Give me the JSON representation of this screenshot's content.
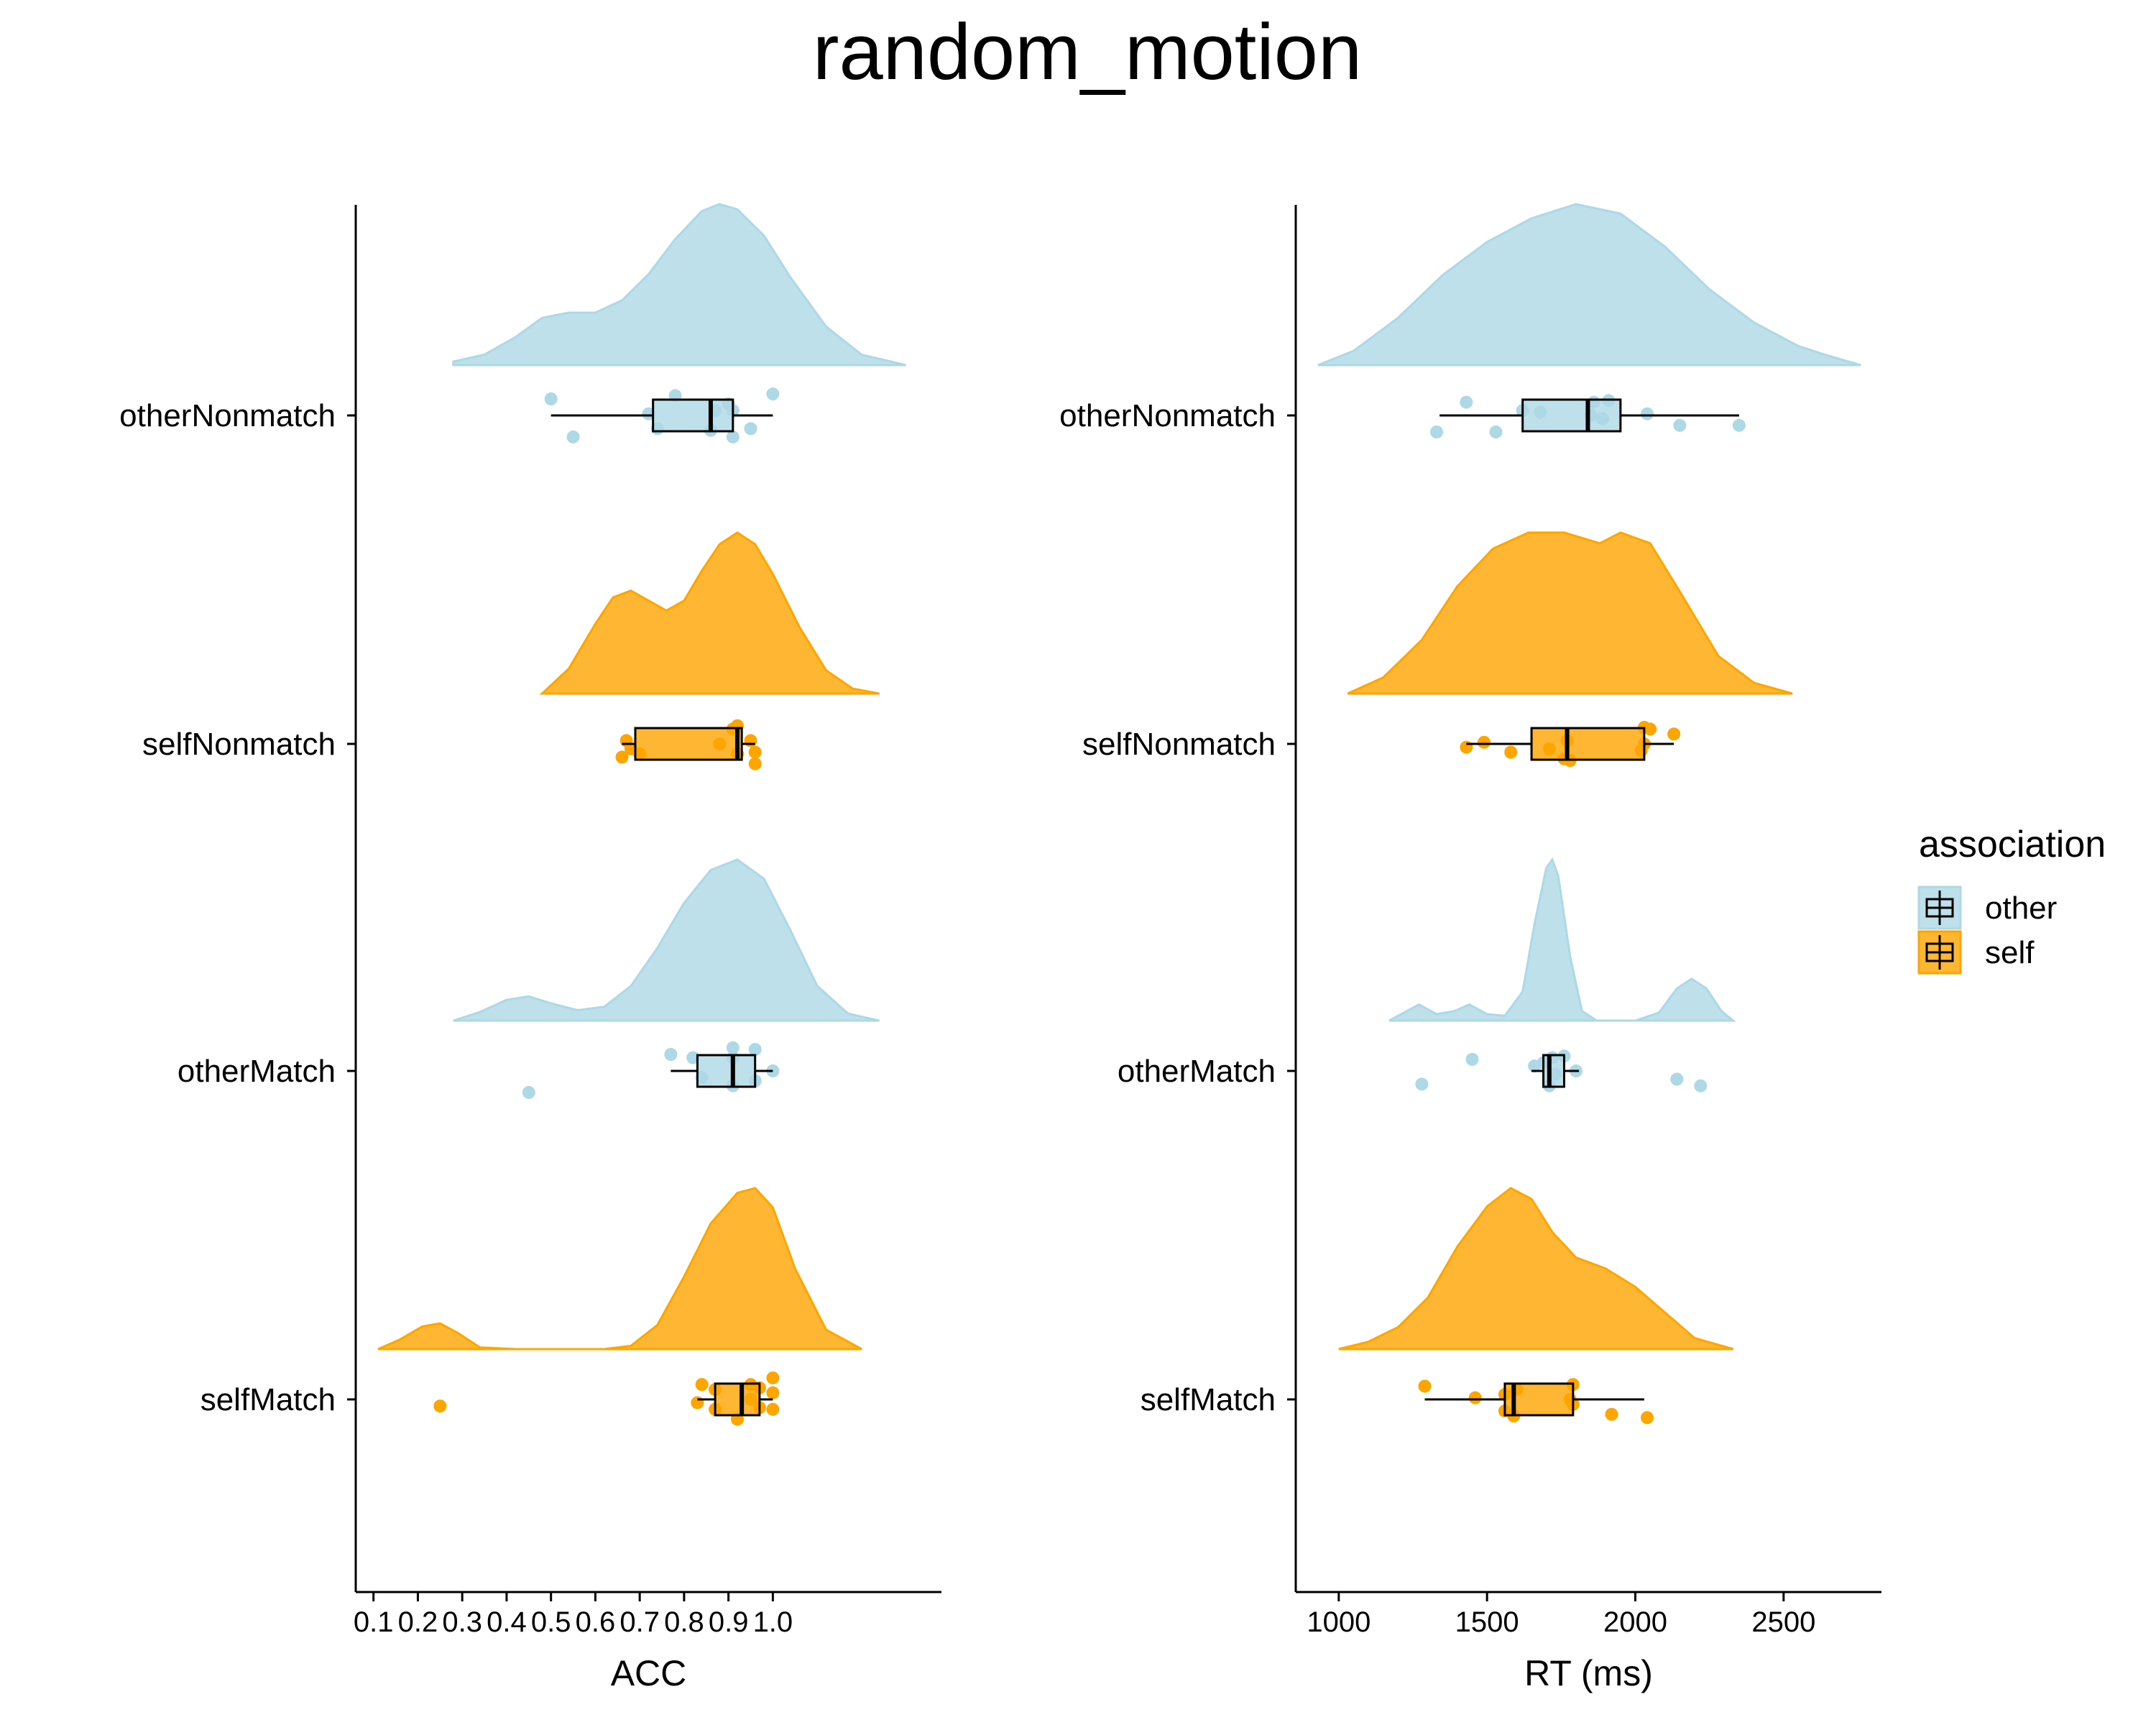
{
  "title": "random_motion",
  "colors": {
    "other": "#ADD8E6",
    "self": "#FFA500",
    "line": "#000000"
  },
  "legend": {
    "title": "association",
    "items": [
      {
        "key": "other",
        "label": "other"
      },
      {
        "key": "self",
        "label": "self"
      }
    ]
  },
  "chart_data": [
    {
      "type": "raincloud",
      "xlabel": "ACC",
      "xlim": [
        0.06,
        1.38
      ],
      "xticks": [
        0.1,
        0.2,
        0.3,
        0.4,
        0.5,
        0.6,
        0.7,
        0.8,
        0.9,
        1.0
      ],
      "xtick_labels": [
        "0.1",
        "0.2",
        "0.3",
        "0.4",
        "0.5",
        "0.6",
        "0.7",
        "0.8",
        "0.9",
        "1.0"
      ],
      "categories": [
        "otherNonmatch",
        "selfNonmatch",
        "otherMatch",
        "selfMatch"
      ],
      "groups": [
        {
          "category": "otherNonmatch",
          "association": "other",
          "box": {
            "whisker_low": 0.5,
            "q1": 0.73,
            "median": 0.86,
            "q3": 0.91,
            "whisker_high": 1.0
          },
          "points": [
            [
              0.5,
              0.1
            ],
            [
              0.78,
              0.12
            ],
            [
              0.9,
              0.07
            ],
            [
              1.0,
              0.13
            ],
            [
              0.72,
              0.01
            ],
            [
              0.87,
              0.03
            ],
            [
              0.91,
              0.03
            ],
            [
              0.74,
              -0.08
            ],
            [
              0.86,
              -0.09
            ],
            [
              0.95,
              -0.08
            ],
            [
              0.91,
              -0.13
            ],
            [
              0.55,
              -0.13
            ]
          ],
          "density": {
            "range": [
              0.28,
              1.3
            ],
            "x": [
              0.28,
              0.35,
              0.42,
              0.48,
              0.54,
              0.6,
              0.66,
              0.72,
              0.78,
              0.84,
              0.88,
              0.92,
              0.98,
              1.04,
              1.12,
              1.2,
              1.3
            ],
            "y": [
              0.02,
              0.06,
              0.16,
              0.27,
              0.3,
              0.3,
              0.37,
              0.52,
              0.72,
              0.88,
              0.92,
              0.89,
              0.74,
              0.5,
              0.22,
              0.06,
              0.0
            ]
          }
        },
        {
          "category": "selfNonmatch",
          "association": "self",
          "box": {
            "whisker_low": 0.66,
            "q1": 0.69,
            "median": 0.92,
            "q3": 0.93,
            "whisker_high": 0.96
          },
          "points": [
            [
              0.92,
              0.11
            ],
            [
              0.91,
              0.09
            ],
            [
              0.67,
              0.02
            ],
            [
              0.88,
              0.0
            ],
            [
              0.95,
              0.02
            ],
            [
              0.68,
              -0.03
            ],
            [
              0.7,
              -0.06
            ],
            [
              0.96,
              -0.05
            ],
            [
              0.66,
              -0.08
            ],
            [
              0.92,
              -0.06
            ],
            [
              0.96,
              -0.12
            ]
          ],
          "density": {
            "range": [
              0.48,
              1.24
            ],
            "x": [
              0.48,
              0.54,
              0.6,
              0.64,
              0.68,
              0.72,
              0.76,
              0.8,
              0.84,
              0.88,
              0.92,
              0.96,
              1.0,
              1.06,
              1.12,
              1.18,
              1.24
            ],
            "y": [
              0.0,
              0.15,
              0.42,
              0.58,
              0.62,
              0.56,
              0.5,
              0.56,
              0.74,
              0.9,
              0.97,
              0.9,
              0.72,
              0.4,
              0.14,
              0.03,
              0.0
            ]
          }
        },
        {
          "category": "otherMatch",
          "association": "other",
          "box": {
            "whisker_low": 0.77,
            "q1": 0.83,
            "median": 0.91,
            "q3": 0.96,
            "whisker_high": 1.0
          },
          "points": [
            [
              0.91,
              0.14
            ],
            [
              0.96,
              0.13
            ],
            [
              0.77,
              0.1
            ],
            [
              0.82,
              0.08
            ],
            [
              0.91,
              0.08
            ],
            [
              1.0,
              0.0
            ],
            [
              0.84,
              -0.04
            ],
            [
              0.96,
              -0.06
            ],
            [
              0.91,
              -0.09
            ],
            [
              0.45,
              -0.13
            ]
          ],
          "density": {
            "range": [
              0.28,
              1.24
            ],
            "x": [
              0.28,
              0.34,
              0.4,
              0.45,
              0.5,
              0.56,
              0.62,
              0.68,
              0.74,
              0.8,
              0.86,
              0.92,
              0.98,
              1.04,
              1.1,
              1.17,
              1.24
            ],
            "y": [
              0.0,
              0.05,
              0.12,
              0.14,
              0.1,
              0.06,
              0.08,
              0.2,
              0.42,
              0.68,
              0.87,
              0.93,
              0.82,
              0.52,
              0.2,
              0.04,
              0.0
            ]
          }
        },
        {
          "category": "selfMatch",
          "association": "self",
          "box": {
            "whisker_low": 0.83,
            "q1": 0.87,
            "median": 0.93,
            "q3": 0.97,
            "whisker_high": 1.0
          },
          "points": [
            [
              1.0,
              0.13
            ],
            [
              0.84,
              0.09
            ],
            [
              0.95,
              0.09
            ],
            [
              0.87,
              0.06
            ],
            [
              0.97,
              0.07
            ],
            [
              1.0,
              0.04
            ],
            [
              0.95,
              0.0
            ],
            [
              0.83,
              -0.02
            ],
            [
              0.87,
              -0.06
            ],
            [
              0.97,
              -0.05
            ],
            [
              1.0,
              -0.06
            ],
            [
              0.25,
              -0.04
            ],
            [
              0.92,
              -0.12
            ]
          ],
          "density": {
            "range": [
              0.11,
              1.2
            ],
            "x": [
              0.11,
              0.16,
              0.21,
              0.25,
              0.29,
              0.34,
              0.42,
              0.52,
              0.62,
              0.68,
              0.74,
              0.8,
              0.86,
              0.92,
              0.96,
              1.0,
              1.05,
              1.12,
              1.2
            ],
            "y": [
              0.0,
              0.06,
              0.14,
              0.16,
              0.1,
              0.01,
              0.0,
              0.0,
              0.0,
              0.02,
              0.15,
              0.45,
              0.78,
              0.97,
              1.0,
              0.88,
              0.5,
              0.12,
              0.0
            ]
          }
        }
      ]
    },
    {
      "type": "raincloud",
      "xlabel": "RT (ms)",
      "xlim": [
        855,
        2830
      ],
      "xticks": [
        1000,
        1500,
        2000,
        2500
      ],
      "xtick_labels": [
        "1000",
        "1500",
        "2000",
        "2500"
      ],
      "categories": [
        "otherNonmatch",
        "selfNonmatch",
        "otherMatch",
        "selfMatch"
      ],
      "groups": [
        {
          "category": "otherNonmatch",
          "association": "other",
          "box": {
            "whisker_low": 1340,
            "q1": 1620,
            "median": 1840,
            "q3": 1950,
            "whisker_high": 2350
          },
          "points": [
            [
              1430,
              0.08
            ],
            [
              1860,
              0.08
            ],
            [
              1910,
              0.09
            ],
            [
              1680,
              0.02
            ],
            [
              2040,
              0.01
            ],
            [
              1620,
              0.03
            ],
            [
              1850,
              0.0
            ],
            [
              2150,
              -0.06
            ],
            [
              2350,
              -0.06
            ],
            [
              1330,
              -0.1
            ],
            [
              1530,
              -0.1
            ],
            [
              1890,
              -0.02
            ]
          ],
          "density": {
            "range": [
              930,
              2760
            ],
            "x": [
              930,
              1050,
              1200,
              1350,
              1500,
              1650,
              1800,
              1950,
              2100,
              2250,
              2400,
              2550,
              2650,
              2760
            ],
            "y": [
              0.0,
              0.03,
              0.1,
              0.19,
              0.26,
              0.31,
              0.34,
              0.32,
              0.25,
              0.16,
              0.09,
              0.04,
              0.02,
              0.0
            ]
          }
        },
        {
          "category": "selfNonmatch",
          "association": "self",
          "box": {
            "whisker_low": 1430,
            "q1": 1650,
            "median": 1770,
            "q3": 2030,
            "whisker_high": 2130
          },
          "points": [
            [
              2030,
              0.1
            ],
            [
              2050,
              0.09
            ],
            [
              2130,
              0.06
            ],
            [
              1490,
              0.01
            ],
            [
              1770,
              0.02
            ],
            [
              2030,
              0.0
            ],
            [
              1430,
              -0.02
            ],
            [
              1580,
              -0.05
            ],
            [
              1710,
              -0.03
            ],
            [
              2020,
              -0.04
            ],
            [
              1760,
              -0.09
            ],
            [
              1780,
              -0.1
            ]
          ],
          "density": {
            "range": [
              1030,
              2530
            ],
            "x": [
              1030,
              1150,
              1280,
              1400,
              1520,
              1640,
              1760,
              1880,
              1950,
              2050,
              2150,
              2280,
              2400,
              2530
            ],
            "y": [
              0.0,
              0.03,
              0.1,
              0.2,
              0.27,
              0.3,
              0.3,
              0.28,
              0.3,
              0.28,
              0.19,
              0.07,
              0.02,
              0.0
            ]
          }
        },
        {
          "category": "otherMatch",
          "association": "other",
          "box": {
            "whisker_low": 1650,
            "q1": 1690,
            "median": 1710,
            "q3": 1760,
            "whisker_high": 1810
          },
          "points": [
            [
              1760,
              0.09
            ],
            [
              1450,
              0.07
            ],
            [
              1720,
              0.08
            ],
            [
              1690,
              0.05
            ],
            [
              1660,
              0.03
            ],
            [
              1800,
              0.0
            ],
            [
              1730,
              -0.02
            ],
            [
              2140,
              -0.05
            ],
            [
              1280,
              -0.08
            ],
            [
              1710,
              -0.09
            ],
            [
              2220,
              -0.09
            ]
          ],
          "density": {
            "range": [
              1170,
              2330
            ],
            "x": [
              1170,
              1230,
              1270,
              1330,
              1390,
              1440,
              1500,
              1560,
              1620,
              1660,
              1700,
              1720,
              1740,
              1780,
              1820,
              1870,
              1930,
              2000,
              2080,
              2140,
              2190,
              2240,
              2290,
              2330
            ],
            "y": [
              0.0,
              0.06,
              0.1,
              0.04,
              0.06,
              0.1,
              0.04,
              0.03,
              0.18,
              0.6,
              0.95,
              1.0,
              0.9,
              0.4,
              0.06,
              0.0,
              0.0,
              0.0,
              0.05,
              0.2,
              0.26,
              0.2,
              0.06,
              0.0
            ]
          }
        },
        {
          "category": "selfMatch",
          "association": "self",
          "box": {
            "whisker_low": 1290,
            "q1": 1560,
            "median": 1590,
            "q3": 1790,
            "whisker_high": 2030
          },
          "points": [
            [
              1290,
              0.08
            ],
            [
              1790,
              0.09
            ],
            [
              1600,
              0.06
            ],
            [
              1460,
              0.01
            ],
            [
              1560,
              0.03
            ],
            [
              1780,
              0.0
            ],
            [
              1790,
              -0.03
            ],
            [
              1560,
              -0.07
            ],
            [
              1920,
              -0.09
            ],
            [
              1590,
              -0.1
            ],
            [
              2040,
              -0.11
            ]
          ],
          "density": {
            "range": [
              1000,
              2330
            ],
            "x": [
              1000,
              1100,
              1200,
              1300,
              1400,
              1500,
              1580,
              1650,
              1720,
              1800,
              1900,
              2000,
              2100,
              2200,
              2330
            ],
            "y": [
              0.0,
              0.02,
              0.06,
              0.14,
              0.28,
              0.39,
              0.44,
              0.41,
              0.32,
              0.25,
              0.22,
              0.17,
              0.1,
              0.03,
              0.0
            ]
          }
        }
      ]
    }
  ]
}
